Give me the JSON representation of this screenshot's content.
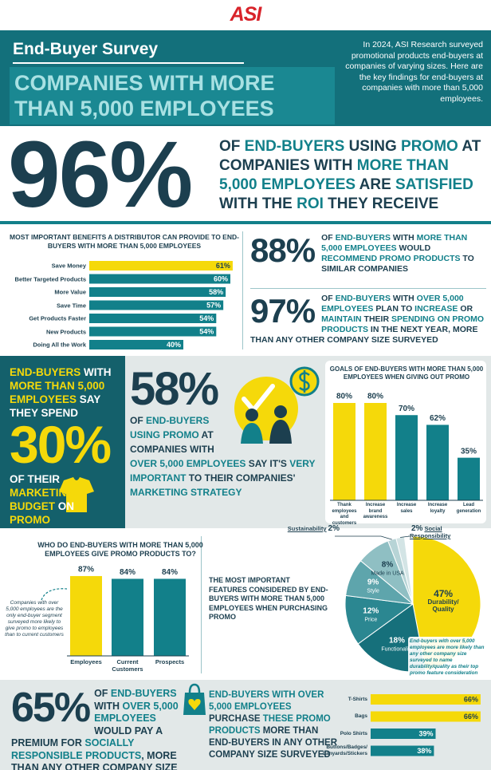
{
  "header": {
    "logo": "ASI",
    "kicker": "End-Buyer Survey",
    "title": "COMPANIES WITH MORE THAN 5,000 EMPLOYEES",
    "intro": "In 2024, ASI Research surveyed promotional products end-buyers at companies of varying sizes. Here are the key findings for end-buyers at companies with more than 5,000 employees."
  },
  "stats": [
    {
      "figure": "96%",
      "text": [
        {
          "text": "OF ",
          "color": "#1c3f4f"
        },
        {
          "text": "END-BUYERS",
          "color": "#12808a"
        },
        {
          "text": " USING ",
          "color": "#1c3f4f"
        },
        {
          "text": "PROMO",
          "color": "#12808a"
        },
        {
          "text": " AT COMPANIES WITH ",
          "color": "#1c3f4f"
        },
        {
          "text": "MORE THAN 5,000 EMPLOYEES",
          "color": "#12808a"
        },
        {
          "text": " ARE ",
          "color": "#1c3f4f"
        },
        {
          "text": "SATISFIED",
          "color": "#12808a"
        },
        {
          "text": " WITH THE ",
          "color": "#1c3f4f"
        },
        {
          "text": "ROI",
          "color": "#12808a"
        },
        {
          "text": " THEY RECEIVE",
          "color": "#1c3f4f"
        }
      ]
    },
    {
      "figure": "88%",
      "text": [
        {
          "text": "OF ",
          "color": "#1c3f4f"
        },
        {
          "text": "END-BUYERS",
          "color": "#12808a"
        },
        {
          "text": " WITH ",
          "color": "#1c3f4f"
        },
        {
          "text": "MORE THAN 5,000 EMPLOYEES",
          "color": "#12808a"
        },
        {
          "text": " WOULD ",
          "color": "#1c3f4f"
        },
        {
          "text": "RECOMMEND PROMO PRODUCTS",
          "color": "#12808a"
        },
        {
          "text": " TO SIMILAR COMPANIES",
          "color": "#1c3f4f"
        }
      ]
    },
    {
      "figure": "97%",
      "text": [
        {
          "text": "OF ",
          "color": "#1c3f4f"
        },
        {
          "text": "END-BUYERS",
          "color": "#12808a"
        },
        {
          "text": " WITH ",
          "color": "#1c3f4f"
        },
        {
          "text": "OVER 5,000 EMPLOYEES",
          "color": "#12808a"
        },
        {
          "text": " PLAN TO ",
          "color": "#1c3f4f"
        },
        {
          "text": "INCREASE",
          "color": "#12808a"
        },
        {
          "text": " OR ",
          "color": "#1c3f4f"
        },
        {
          "text": "MAINTAIN",
          "color": "#12808a"
        },
        {
          "text": " THEIR ",
          "color": "#1c3f4f"
        },
        {
          "text": "SPENDING ON PROMO PRODUCTS",
          "color": "#12808a"
        },
        {
          "text": " IN THE NEXT YEAR, MORE THAN ANY OTHER COMPANY SIZE SURVEYED",
          "color": "#1c3f4f"
        }
      ]
    },
    {
      "lead": [
        {
          "text": "END-BUYERS",
          "color": "#f5d90a"
        },
        {
          "text": " WITH ",
          "color": "#ffffff"
        },
        {
          "text": "MORE THAN 5,000 EMPLOYEES",
          "color": "#f5d90a"
        },
        {
          "text": " SAY THEY SPEND",
          "color": "#ffffff"
        }
      ],
      "figure": "30%",
      "text": [
        {
          "text": "OF THEIR ",
          "color": "#ffffff"
        },
        {
          "text": "MARKETING BUDGET",
          "color": "#f5d90a"
        },
        {
          "text": " ON ",
          "color": "#ffffff"
        },
        {
          "text": "PROMO",
          "color": "#f5d90a"
        }
      ]
    },
    {
      "figure": "58%",
      "text": [
        {
          "text": "OF ",
          "color": "#1c3f4f"
        },
        {
          "text": "END-BUYERS USING PROMO",
          "color": "#12808a"
        },
        {
          "text": " AT COMPANIES WITH ",
          "color": "#1c3f4f"
        },
        {
          "text": "OVER 5,000 EMPLOYEES",
          "color": "#12808a"
        },
        {
          "text": " SAY IT'S ",
          "color": "#1c3f4f"
        },
        {
          "text": "VERY IMPORTANT",
          "color": "#12808a"
        },
        {
          "text": " TO THEIR COMPANIES' ",
          "color": "#1c3f4f"
        },
        {
          "text": "MARKETING STRATEGY",
          "color": "#12808a"
        }
      ]
    },
    {
      "figure": "65%",
      "text": [
        {
          "text": "OF ",
          "color": "#1c3f4f"
        },
        {
          "text": "END-BUYERS",
          "color": "#12808a"
        },
        {
          "text": " WITH ",
          "color": "#1c3f4f"
        },
        {
          "text": "OVER 5,000 EMPLOYEES",
          "color": "#12808a"
        },
        {
          "text": " WOULD PAY A PREMIUM FOR ",
          "color": "#1c3f4f"
        },
        {
          "text": "SOCIALLY RESPONSIBLE PRODUCTS",
          "color": "#12808a"
        },
        {
          "text": ", MORE THAN ANY OTHER COMPANY SIZE SURVEYED",
          "color": "#1c3f4f"
        }
      ]
    }
  ],
  "purchase_text": [
    {
      "text": "END-BUYERS WITH OVER 5,000 EMPLOYEES",
      "color": "#12808a"
    },
    {
      "text": " PURCHASE ",
      "color": "#1c3f4f"
    },
    {
      "text": "THESE PROMO PRODUCTS",
      "color": "#12808a"
    },
    {
      "text": " MORE THAN END-BUYERS IN ANY OTHER COMPANY SIZE SURVEYED",
      "color": "#1c3f4f"
    }
  ],
  "chart_data": [
    {
      "type": "bar",
      "orientation": "horizontal",
      "title": "MOST IMPORTANT BENEFITS A DISTRIBUTOR CAN PROVIDE TO END-BUYERS WITH MORE THAN 5,000 EMPLOYEES",
      "categories": [
        "Save Money",
        "Better Targeted Products",
        "More Value",
        "Save Time",
        "Get Products Faster",
        "New Products",
        "Doing All the Work"
      ],
      "values": [
        61,
        60,
        58,
        57,
        54,
        54,
        40
      ],
      "value_labels": [
        "61%",
        "60%",
        "58%",
        "57%",
        "54%",
        "54%",
        "40%"
      ],
      "colors": [
        "#f5d90a",
        "#12808a",
        "#12808a",
        "#12808a",
        "#12808a",
        "#12808a",
        "#12808a"
      ]
    },
    {
      "type": "bar",
      "orientation": "vertical",
      "title": "GOALS OF END-BUYERS WITH MORE THAN 5,000 EMPLOYEES WHEN GIVING OUT PROMO",
      "categories": [
        "Thank employees and customers",
        "Increase brand awareness",
        "Increase sales",
        "Increase loyalty",
        "Lead generation"
      ],
      "values": [
        80,
        80,
        70,
        62,
        35
      ],
      "value_labels": [
        "80%",
        "80%",
        "70%",
        "62%",
        "35%"
      ],
      "colors": [
        "#f5d90a",
        "#f5d90a",
        "#12808a",
        "#12808a",
        "#12808a"
      ]
    },
    {
      "type": "bar",
      "orientation": "vertical",
      "title": "WHO DO END-BUYERS WITH MORE THAN 5,000 EMPLOYEES GIVE PROMO PRODUCTS TO?",
      "categories": [
        "Employees",
        "Current Customers",
        "Prospects"
      ],
      "values": [
        87,
        84,
        84
      ],
      "value_labels": [
        "87%",
        "84%",
        "84%"
      ],
      "colors": [
        "#f5d90a",
        "#12808a",
        "#12808a"
      ],
      "annotation": "Companies with over 5,000 employees are the only end-buyer segment surveyed more likely to give promo to employees than to current customers"
    },
    {
      "type": "pie",
      "title": "THE MOST IMPORTANT FEATURES CONSIDERED BY END-BUYERS WITH MORE THAN 5,000 EMPLOYEES WHEN PURCHASING PROMO",
      "categories": [
        "Durability/ Quality",
        "Functionality",
        "Price",
        "Style",
        "Made in USA",
        "Sustainability",
        "Social Responsibility"
      ],
      "values": [
        47,
        18,
        12,
        9,
        8,
        2,
        2
      ],
      "value_labels": [
        "47%",
        "18%",
        "12%",
        "9%",
        "8%",
        "2%",
        "2%"
      ],
      "colors": [
        "#f5d90a",
        "#16707b",
        "#2b8791",
        "#5ea5ac",
        "#8fbfc3",
        "#b7d4d6",
        "#d3e4e5"
      ],
      "annotation": "End-buyers with over 5,000 employees are more likely than any other company size surveyed to name durability/quality as their top promo feature consideration"
    },
    {
      "type": "bar",
      "orientation": "horizontal",
      "categories": [
        "T-Shirts",
        "Bags",
        "Polo Shirts",
        "Buttons/Badges/ Lanyards/Stickers"
      ],
      "values": [
        66,
        66,
        39,
        38
      ],
      "value_labels": [
        "66%",
        "66%",
        "39%",
        "38%"
      ],
      "colors": [
        "#f5d90a",
        "#f5d90a",
        "#12808a",
        "#12808a"
      ]
    }
  ]
}
